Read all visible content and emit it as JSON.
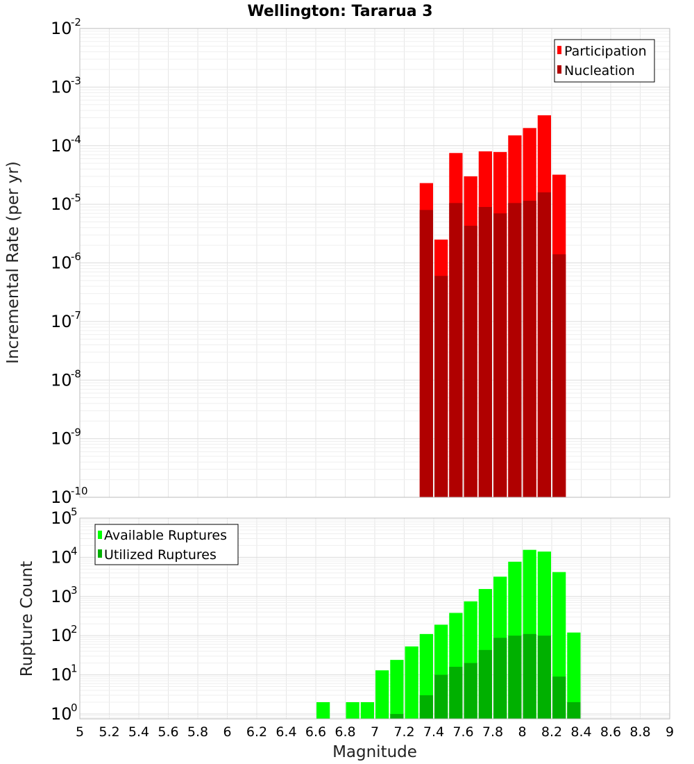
{
  "chart_title": "Wellington: Tararua 3",
  "x_axis": {
    "label": "Magnitude",
    "range": [
      5,
      9
    ],
    "ticks": [
      "5",
      "5.2",
      "5.4",
      "5.6",
      "5.8",
      "6",
      "6.2",
      "6.4",
      "6.6",
      "6.8",
      "7",
      "7.2",
      "7.4",
      "7.6",
      "7.8",
      "8",
      "8.2",
      "8.4",
      "8.6",
      "8.8",
      "9"
    ]
  },
  "colors": {
    "participation": "#ff0000",
    "nucleation": "#b00000",
    "available": "#00ff00",
    "utilized": "#00b000",
    "grid": "#e6e6e6",
    "frame": "#bbbbbb"
  },
  "chart_data": [
    {
      "type": "bar",
      "ylabel": "Incremental Rate (per yr)",
      "yscale": "log",
      "ylim": [
        1e-10,
        0.01
      ],
      "ytick_exponents": [
        "-10",
        "-9",
        "-8",
        "-7",
        "-6",
        "-5",
        "-4",
        "-3",
        "-2"
      ],
      "legend": {
        "placement": "top-right",
        "entries": [
          "Participation",
          "Nucleation"
        ]
      },
      "bin_width": 0.1,
      "x": [
        7.35,
        7.45,
        7.55,
        7.65,
        7.75,
        7.85,
        7.95,
        8.05,
        8.15,
        8.25
      ],
      "series": [
        {
          "name": "Participation",
          "values": [
            2.3e-05,
            2.5e-06,
            7.5e-05,
            3e-05,
            8e-05,
            7.8e-05,
            0.00015,
            0.0002,
            0.00033,
            3.2e-05
          ]
        },
        {
          "name": "Nucleation",
          "values": [
            8e-06,
            6e-07,
            1.05e-05,
            4.3e-06,
            9e-06,
            7e-06,
            1.05e-05,
            1.15e-05,
            1.6e-05,
            1.4e-06
          ]
        }
      ]
    },
    {
      "type": "bar",
      "ylabel": "Rupture Count",
      "yscale": "log",
      "ylim": [
        0.75,
        100000.0
      ],
      "ytick_exponents": [
        "0",
        "1",
        "2",
        "3",
        "4",
        "5"
      ],
      "legend": {
        "placement": "top-left",
        "entries": [
          "Available Ruptures",
          "Utilized Ruptures"
        ]
      },
      "bin_width": 0.1,
      "x": [
        6.65,
        6.85,
        6.95,
        7.05,
        7.15,
        7.25,
        7.35,
        7.45,
        7.55,
        7.65,
        7.75,
        7.85,
        7.95,
        8.05,
        8.15,
        8.25,
        8.35
      ],
      "series": [
        {
          "name": "Available Ruptures",
          "values": [
            2,
            2,
            2,
            13,
            24,
            53,
            110,
            190,
            380,
            750,
            1550,
            3200,
            7700,
            15500,
            14000,
            4200,
            120
          ]
        },
        {
          "name": "Utilized Ruptures",
          "values": [
            0,
            0,
            0,
            0,
            1,
            0,
            3,
            10,
            16,
            20,
            43,
            88,
            100,
            110,
            100,
            9,
            2
          ]
        }
      ]
    }
  ]
}
